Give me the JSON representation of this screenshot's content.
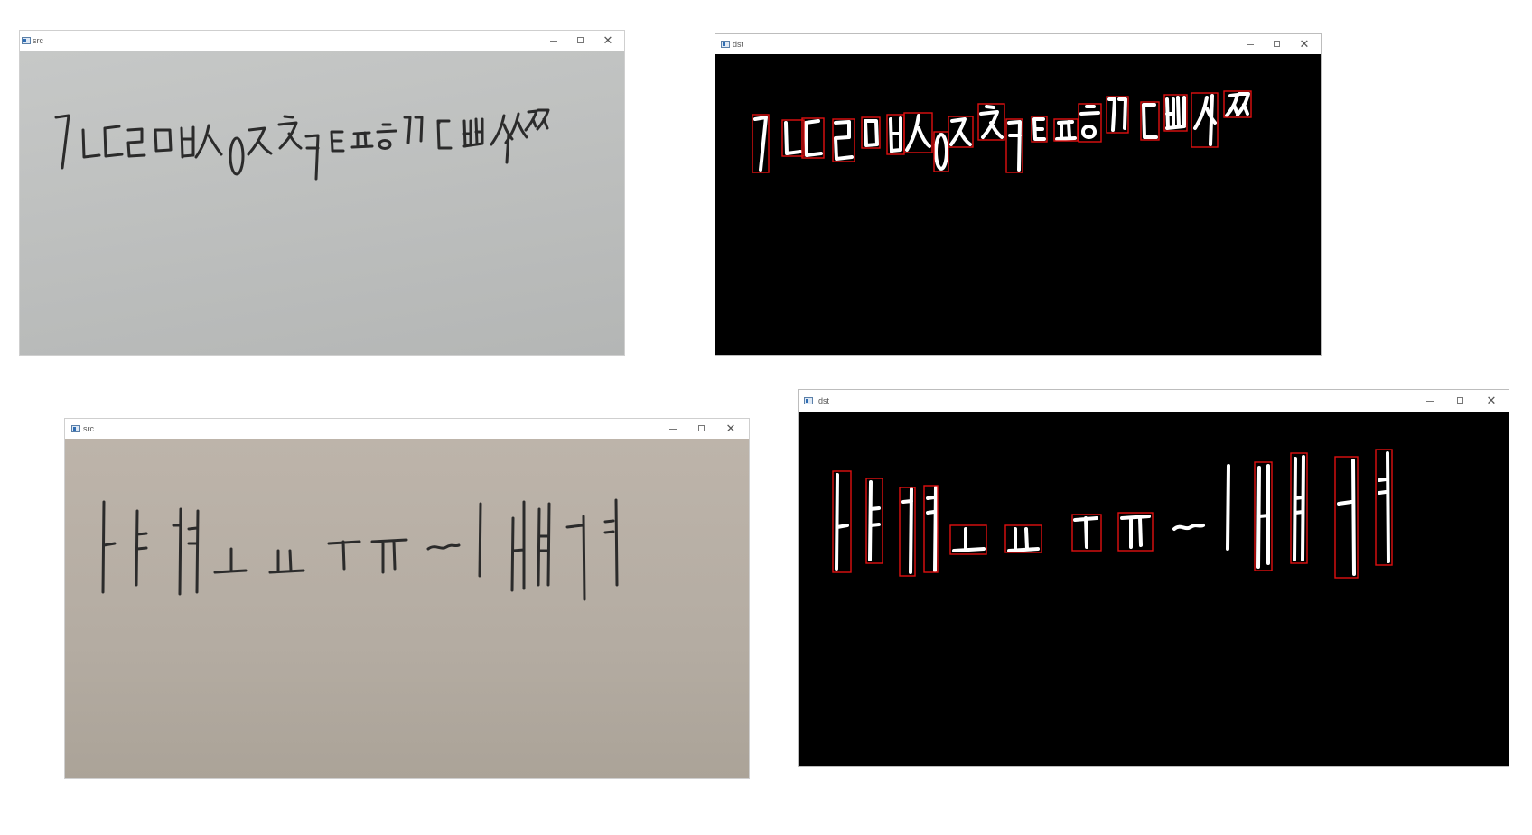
{
  "windows": [
    {
      "id": "top-left",
      "kind": "src",
      "title": "src"
    },
    {
      "id": "top-right",
      "kind": "dst",
      "title": "dst"
    },
    {
      "id": "bottom-left",
      "kind": "src",
      "title": "src"
    },
    {
      "id": "bottom-right",
      "kind": "dst",
      "title": "dst"
    }
  ],
  "controls": {
    "minimize": "",
    "maximize": "",
    "close": "✕"
  },
  "icons": {
    "app": "window-app-icon",
    "minimize": "minimize-icon",
    "maximize": "maximize-icon",
    "close": "close-icon"
  },
  "colors": {
    "box": "#e01010",
    "ink": "#2b2b2b",
    "mask": "#ffffff",
    "background": "#000000"
  }
}
